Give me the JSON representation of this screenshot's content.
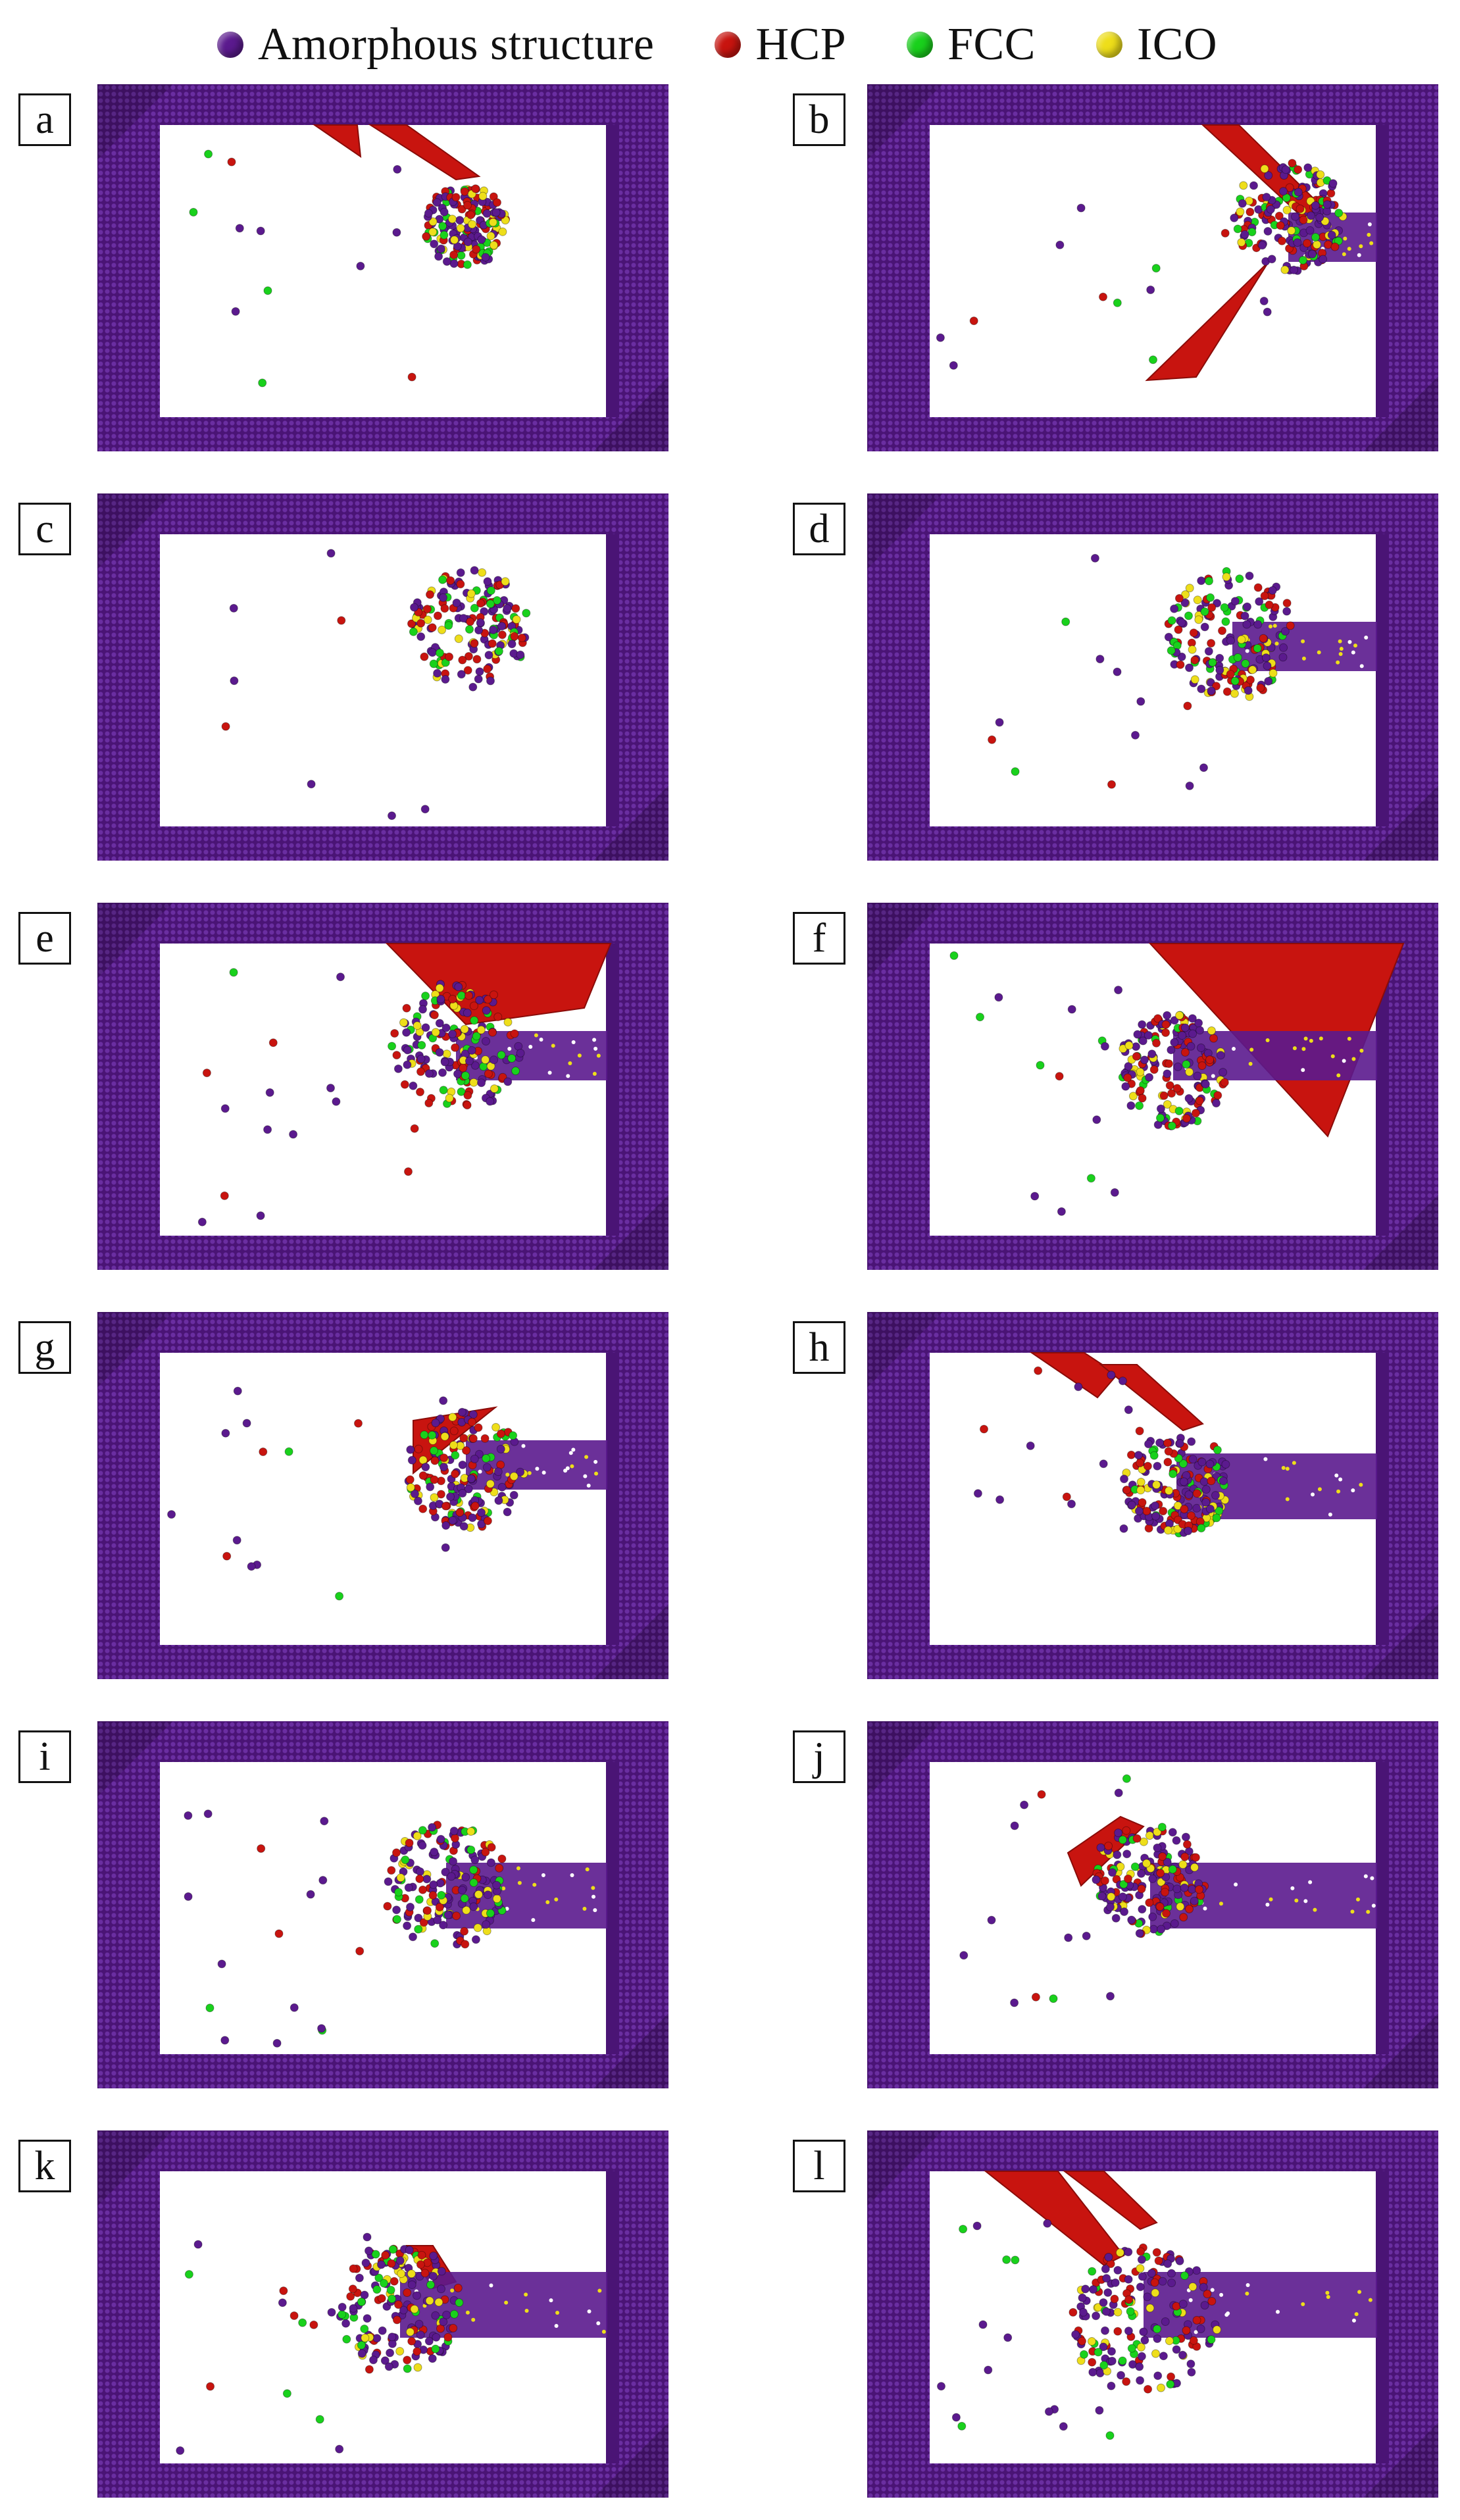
{
  "legend": [
    {
      "label": "Amorphous structure",
      "color": "#5b1a8e"
    },
    {
      "label": "HCP",
      "color": "#c8140f"
    },
    {
      "label": "FCC",
      "color": "#19d11c"
    },
    {
      "label": "ICO",
      "color": "#eede1a"
    }
  ],
  "panels": [
    {
      "letter": "a"
    },
    {
      "letter": "b"
    },
    {
      "letter": "c"
    },
    {
      "letter": "d"
    },
    {
      "letter": "e"
    },
    {
      "letter": "f"
    },
    {
      "letter": "g"
    },
    {
      "letter": "h"
    },
    {
      "letter": "i"
    },
    {
      "letter": "j"
    },
    {
      "letter": "k"
    },
    {
      "letter": "l"
    }
  ]
}
